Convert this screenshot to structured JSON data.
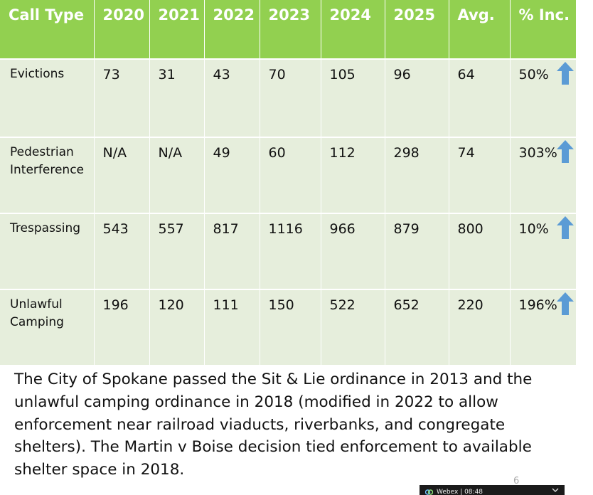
{
  "table": {
    "headers": [
      "Call Type",
      "2020",
      "2021",
      "2022",
      "2023",
      "2024",
      "2025",
      "Avg.",
      "% Inc."
    ],
    "rows": [
      {
        "call_type_line1": "Evictions",
        "call_type_line2": "",
        "values": [
          "73",
          "31",
          "43",
          "70",
          "105",
          "96",
          "64"
        ],
        "pct": "50%"
      },
      {
        "call_type_line1": "Pedestrian",
        "call_type_line2": "Interference",
        "values": [
          "N/A",
          "N/A",
          "49",
          "60",
          "112",
          "298",
          "74"
        ],
        "pct": "303%"
      },
      {
        "call_type_line1": "Trespassing",
        "call_type_line2": "",
        "values": [
          "543",
          "557",
          "817",
          "1116",
          "966",
          "879",
          "800"
        ],
        "pct": "10%"
      },
      {
        "call_type_line1": "Unlawful",
        "call_type_line2": "Camping",
        "values": [
          "196",
          "120",
          "111",
          "150",
          "522",
          "652",
          "220"
        ],
        "pct": "196%"
      }
    ],
    "increase_icon": "arrow-up-icon",
    "header_color": "#92d050",
    "cell_color": "#e6eedc",
    "arrow_color": "#5b9bd5"
  },
  "caption": {
    "line1": "The City of Spokane passed the Sit & Lie ordinance in 2013 and the",
    "line2": "unlawful camping ordinance in 2018 (modified in 2022 to allow",
    "line3": "enforcement near railroad viaducts, riverbanks, and congregate",
    "line4": "shelters). The Martin v Boise decision tied enforcement to available",
    "line5": "shelter space in 2018."
  },
  "slide": {
    "page_number": "6"
  },
  "webex": {
    "label": "Webex | 08:48",
    "icon": "webex-logo-icon",
    "expand_icon": "chevron-down-icon"
  }
}
